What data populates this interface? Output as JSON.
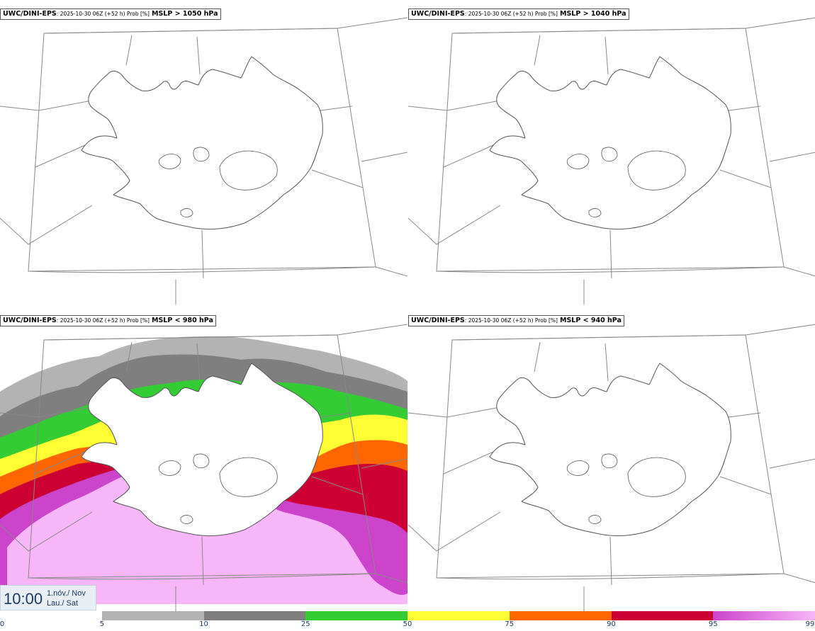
{
  "panels": [
    {
      "model": "UWC/DINI-EPS",
      "meta": ": 2025-10-30 06Z (+52 h) Prob [%]",
      "threshold": "MSLP > 1050 hPa",
      "filled": false
    },
    {
      "model": "UWC/DINI-EPS",
      "meta": ": 2025-10-30 06Z (+52 h) Prob [%]",
      "threshold": "MSLP > 1040 hPa",
      "filled": false
    },
    {
      "model": "UWC/DINI-EPS",
      "meta": ": 2025-10-30 06Z (+52 h) Prob [%]",
      "threshold": "MSLP < 980 hPa",
      "filled": true
    },
    {
      "model": "UWC/DINI-EPS",
      "meta": ": 2025-10-30 06Z (+52 h) Prob [%]",
      "threshold": "MSLP < 940 hPa",
      "filled": false
    }
  ],
  "valid_time": {
    "clock": "10:00",
    "date_line1": "1.nóv./ Nov",
    "date_line2": "Lau./ Sat"
  },
  "colorbar": {
    "ticks": [
      "0",
      "5",
      "10",
      "25",
      "50",
      "75",
      "90",
      "95",
      "99"
    ],
    "bands": [
      {
        "from": 0,
        "to": 5,
        "color": "#ffffff"
      },
      {
        "from": 5,
        "to": 10,
        "color": "#b3b3b3"
      },
      {
        "from": 10,
        "to": 25,
        "color": "#7f7f7f"
      },
      {
        "from": 25,
        "to": 50,
        "color": "#33cc33"
      },
      {
        "from": 50,
        "to": 75,
        "color": "#ffff33"
      },
      {
        "from": 75,
        "to": 90,
        "color": "#ff6600"
      },
      {
        "from": 90,
        "to": 95,
        "color": "#cc0033"
      },
      {
        "from": 95,
        "to": 99,
        "color": "#cc44cc"
      },
      {
        "from": 99,
        "to": 100,
        "color": "#f7b6f7"
      }
    ]
  }
}
